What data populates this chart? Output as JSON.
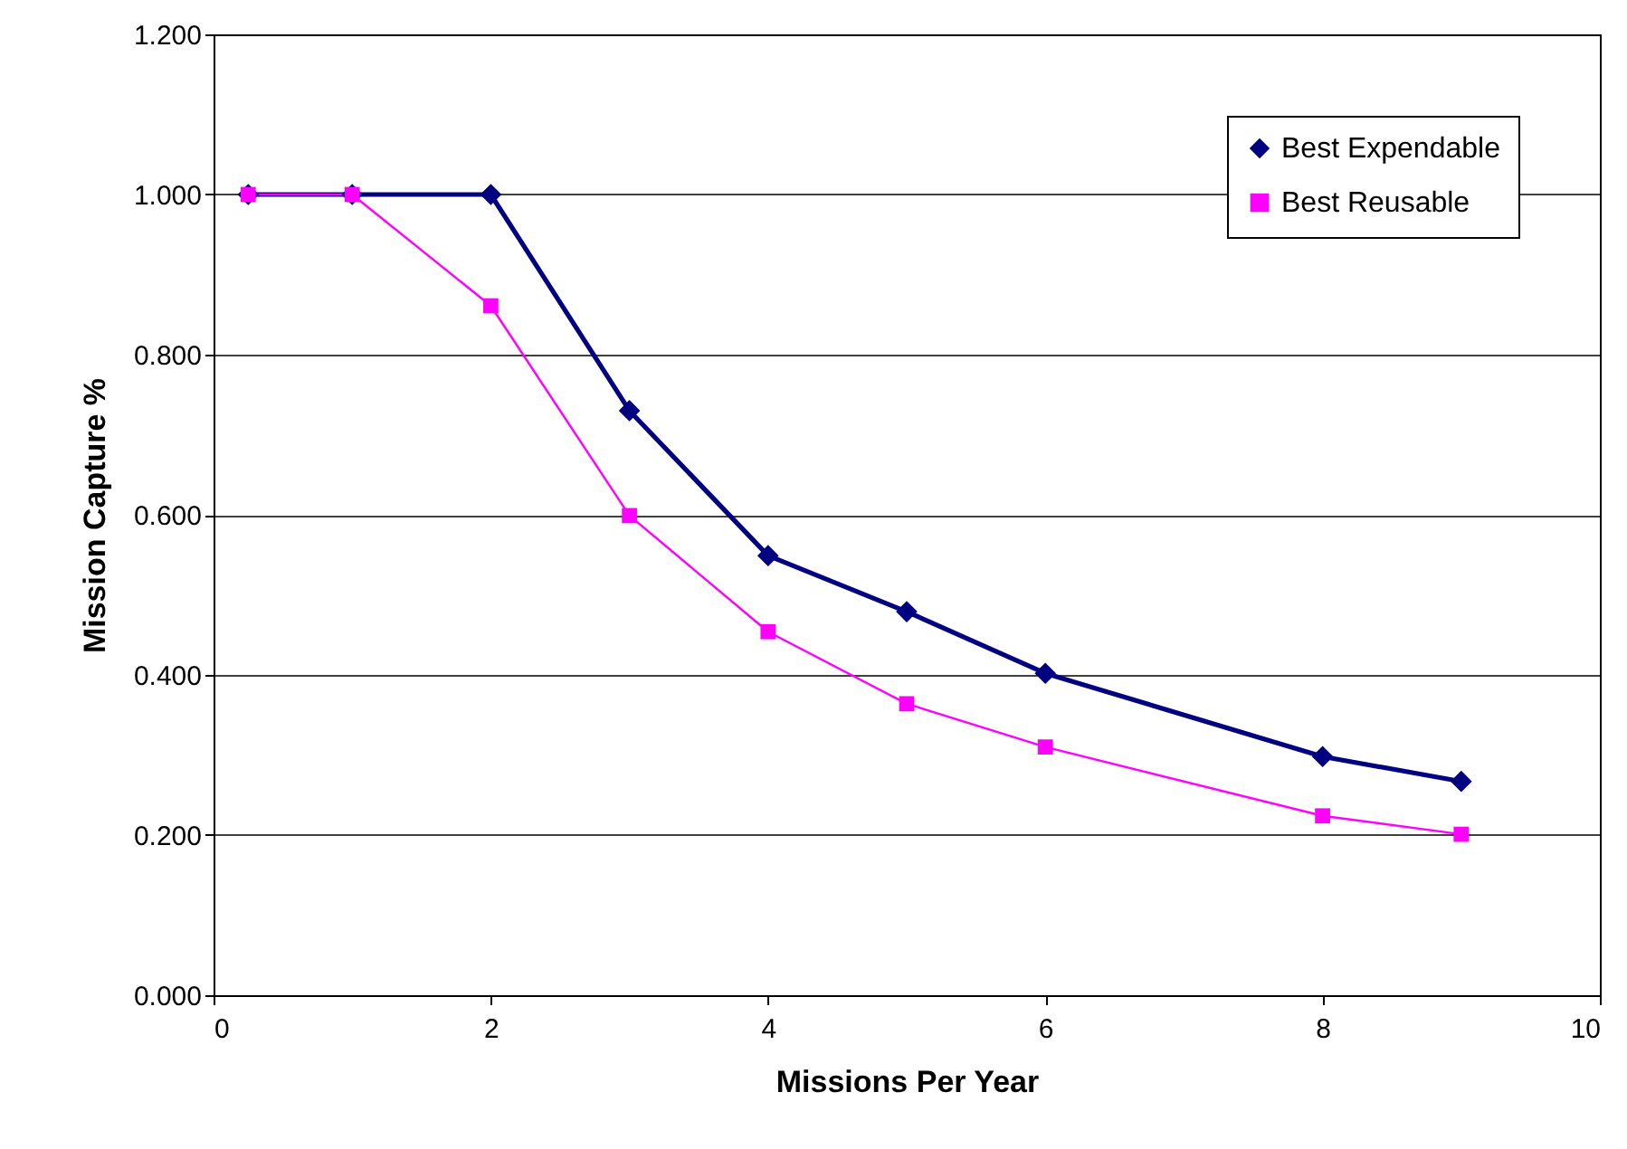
{
  "chart_data": {
    "type": "line",
    "xlabel": "Missions Per Year",
    "ylabel": "Mission Capture %",
    "x": [
      0.25,
      1,
      2,
      3,
      4,
      5,
      6,
      8,
      9
    ],
    "series": [
      {
        "name": "Best Expendable",
        "color": "#000080",
        "marker": "diamond",
        "values": [
          1.0,
          1.0,
          1.0,
          0.73,
          0.549,
          0.479,
          0.402,
          0.298,
          0.267
        ]
      },
      {
        "name": "Best Reusable",
        "color": "#ff00ff",
        "marker": "square",
        "values": [
          1.0,
          1.0,
          0.861,
          0.599,
          0.454,
          0.364,
          0.31,
          0.224,
          0.201
        ]
      }
    ],
    "xlim": [
      0,
      10
    ],
    "xticks": [
      0,
      2,
      4,
      6,
      8,
      10
    ],
    "ylim": [
      0,
      1.2
    ],
    "yticks": [
      {
        "value": 0,
        "label": "0.000"
      },
      {
        "value": 0.2,
        "label": "0.200"
      },
      {
        "value": 0.4,
        "label": "0.400"
      },
      {
        "value": 0.6,
        "label": "0.600"
      },
      {
        "value": 0.8,
        "label": "0.800"
      },
      {
        "value": 1.0,
        "label": "1.000"
      },
      {
        "value": 1.2,
        "label": "1.200"
      }
    ],
    "grid": "y",
    "legend": "top right",
    "line_style": "solid"
  }
}
